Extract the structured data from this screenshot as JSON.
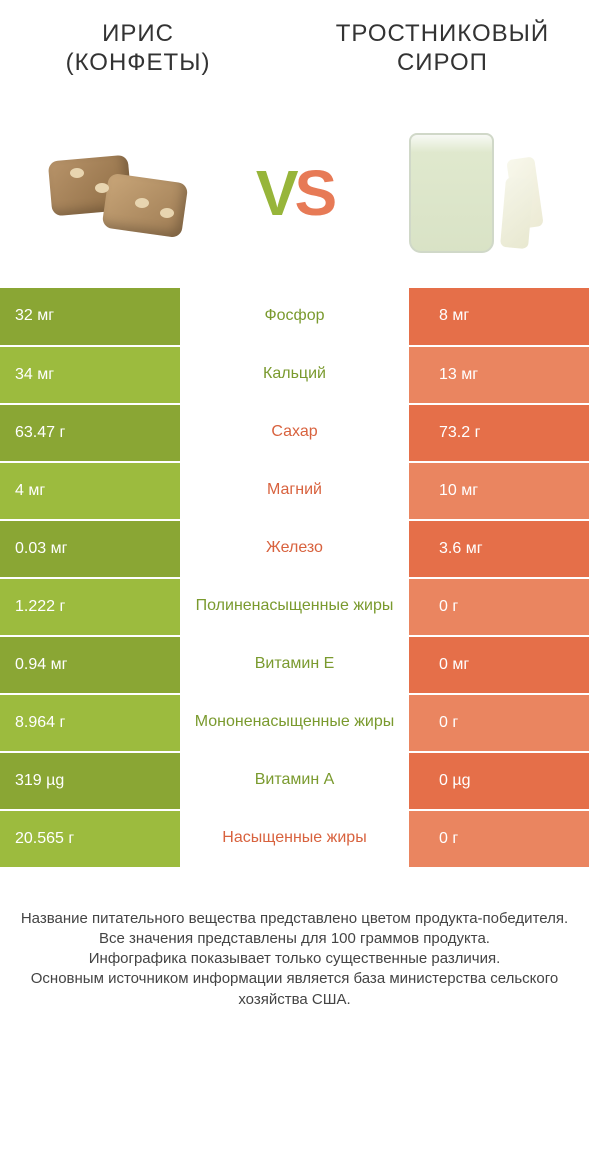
{
  "colors": {
    "green_dark": "#8aa634",
    "green_light": "#9cbb3e",
    "orange_dark": "#e56f49",
    "orange_light": "#ea8560",
    "text_green": "#7a9a2e",
    "text_orange": "#d8623e"
  },
  "titles": {
    "left": "ИРИС\n(КОНФЕТЫ)",
    "right": "ТРОСТНИКОВЫЙ\nСИРОП"
  },
  "vs": {
    "v": "V",
    "s": "S"
  },
  "rows": [
    {
      "left": "32 мг",
      "label": "Фосфор",
      "right": "8 мг",
      "winner": "left"
    },
    {
      "left": "34 мг",
      "label": "Кальций",
      "right": "13 мг",
      "winner": "left"
    },
    {
      "left": "63.47 г",
      "label": "Сахар",
      "right": "73.2 г",
      "winner": "right"
    },
    {
      "left": "4 мг",
      "label": "Магний",
      "right": "10 мг",
      "winner": "right"
    },
    {
      "left": "0.03 мг",
      "label": "Железо",
      "right": "3.6 мг",
      "winner": "right"
    },
    {
      "left": "1.222 г",
      "label": "Полиненасыщенные жиры",
      "right": "0 г",
      "winner": "left"
    },
    {
      "left": "0.94 мг",
      "label": "Витамин E",
      "right": "0 мг",
      "winner": "left"
    },
    {
      "left": "8.964 г",
      "label": "Мононенасыщенные жиры",
      "right": "0 г",
      "winner": "left"
    },
    {
      "left": "319 µg",
      "label": "Витамин A",
      "right": "0 µg",
      "winner": "left"
    },
    {
      "left": "20.565 г",
      "label": "Насыщенные жиры",
      "right": "0 г",
      "winner": "right"
    }
  ],
  "footer": [
    "Название питательного вещества представлено цветом продукта-победителя.",
    "Все значения представлены для 100 граммов продукта.",
    "Инфографика показывает только существенные различия.",
    "Основным источником информации является база министерства сельского хозяйства США."
  ]
}
